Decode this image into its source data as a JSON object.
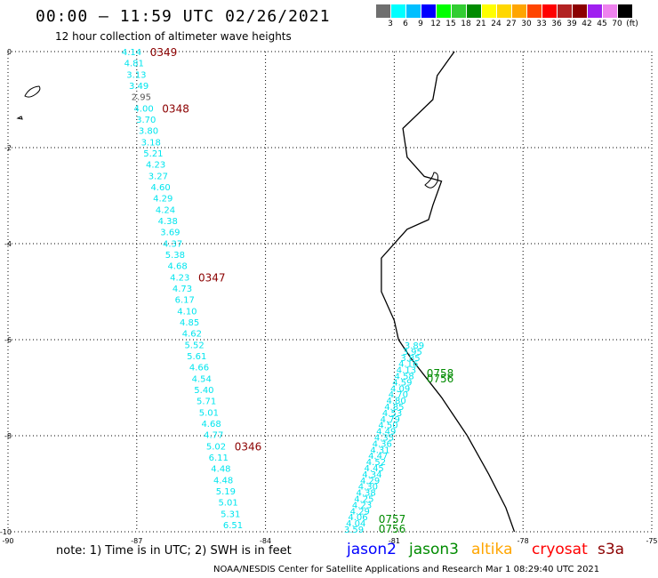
{
  "header": {
    "title": "00:00 – 11:59 UTC 02/26/2021",
    "subtitle": "12 hour collection of altimeter wave heights"
  },
  "colorbar": {
    "labels": [
      "3",
      "6",
      "9",
      "12",
      "15",
      "18",
      "21",
      "24",
      "27",
      "30",
      "33",
      "36",
      "39",
      "42",
      "45",
      "70",
      "(ft)"
    ],
    "colors": [
      "#6f6f6f",
      "#00ffff",
      "#00bfff",
      "#0000ff",
      "#00ff00",
      "#32cd32",
      "#008b00",
      "#ffff00",
      "#ffd700",
      "#ffa500",
      "#ff4500",
      "#ff0000",
      "#b22222",
      "#8b0000",
      "#a020f0",
      "#ee82ee",
      "#000000"
    ]
  },
  "map": {
    "lon_range": [
      -90,
      -75
    ],
    "lat_range": [
      -10,
      0
    ],
    "x_ticks": [
      "-90",
      "-87",
      "-84",
      "-81",
      "-78",
      "-75"
    ],
    "y_ticks": [
      "0",
      "-2",
      "-4",
      "-6",
      "-8",
      "-10"
    ],
    "grid": "dotted",
    "west_track": {
      "color": "#00e5ee",
      "values": [
        "4.14",
        "4.81",
        "3.13",
        "3.49",
        "2.95",
        "4.00",
        "3.70",
        "3.80",
        "3.18",
        "5.21",
        "4.23",
        "3.27",
        "4.60",
        "4.29",
        "4.24",
        "4.38",
        "3.69",
        "4.37",
        "5.38",
        "4.68",
        "4.23",
        "4.73",
        "6.17",
        "4.10",
        "4.85",
        "4.62",
        "5.52",
        "5.61",
        "4.66",
        "4.54",
        "5.40",
        "5.71",
        "5.01",
        "4.68",
        "4.77",
        "5.02",
        "6.11",
        "4.48",
        "4.48",
        "5.19",
        "5.01",
        "5.31",
        "6.51"
      ],
      "gray_index": 4,
      "times": [
        {
          "label": "0349",
          "index": 0
        },
        {
          "label": "0348",
          "index": 5
        },
        {
          "label": "0347",
          "index": 20
        },
        {
          "label": "0346",
          "index": 35
        }
      ]
    },
    "east_track": {
      "color": "#00e5ee",
      "values": [
        "3.89",
        "3.95",
        "3.85",
        "4.16",
        "4.13",
        "4.58",
        "4.59",
        "4.09",
        "4.70",
        "4.80",
        "4.85",
        "4.53",
        "4.79",
        "4.50",
        "4.49",
        "4.35",
        "4.36",
        "4.31",
        "4.47",
        "4.52",
        "4.45",
        "4.34",
        "4.29",
        "4.30",
        "4.38",
        "4.25",
        "4.23",
        "4.29",
        "4.06",
        "4.04",
        "3.59"
      ],
      "times": [
        {
          "label": "0758",
          "index": 3
        },
        {
          "label": "0756",
          "index": 4
        },
        {
          "label": "0757",
          "index": 28
        },
        {
          "label": "0756",
          "index": 30
        }
      ]
    },
    "coast_lonlat": [
      [
        -79.6,
        0.0
      ],
      [
        -80.0,
        -0.5
      ],
      [
        -80.1,
        -1.0
      ],
      [
        -80.8,
        -1.6
      ],
      [
        -80.7,
        -2.2
      ],
      [
        -80.3,
        -2.6
      ],
      [
        -79.9,
        -2.7
      ],
      [
        -80.1,
        -3.2
      ],
      [
        -80.2,
        -3.5
      ],
      [
        -80.7,
        -3.7
      ],
      [
        -81.3,
        -4.3
      ],
      [
        -81.3,
        -5.0
      ],
      [
        -81.0,
        -5.6
      ],
      [
        -80.9,
        -6.0
      ],
      [
        -80.6,
        -6.4
      ],
      [
        -79.9,
        -7.2
      ],
      [
        -79.3,
        -8.0
      ],
      [
        -78.8,
        -8.8
      ],
      [
        -78.4,
        -9.5
      ],
      [
        -78.2,
        -10.0
      ]
    ]
  },
  "footer": {
    "note": "note:  1) Time is in UTC; 2) SWH is in feet",
    "sats": [
      {
        "name": "jason2",
        "color": "#0000ff"
      },
      {
        "name": "jason3",
        "color": "#008b00"
      },
      {
        "name": "altika",
        "color": "#ffa500"
      },
      {
        "name": "cryosat",
        "color": "#ff0000"
      },
      {
        "name": "s3a",
        "color": "#8b0000"
      }
    ],
    "credit": "NOAA/NESDIS Center for Satellite Applications and Research    Mar  1 08:29:40 UTC 2021"
  }
}
